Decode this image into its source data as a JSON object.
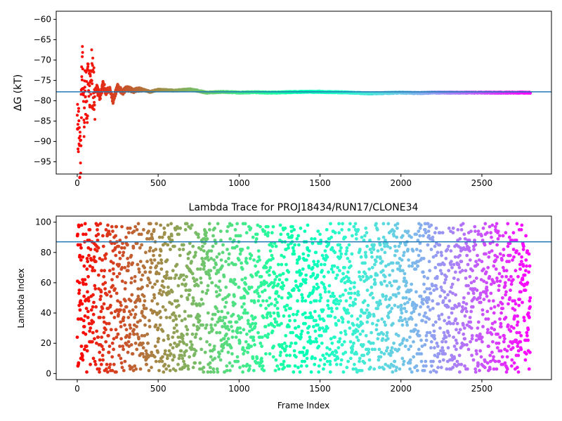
{
  "chart_data": [
    {
      "type": "scatter",
      "title": "",
      "xlabel": "",
      "ylabel": "ΔG (kT)",
      "xlim": [
        -130,
        2930
      ],
      "ylim": [
        -98,
        -58
      ],
      "xticks": [
        0,
        500,
        1000,
        1500,
        2000,
        2500
      ],
      "xtick_labels": [
        "0",
        "500",
        "1000",
        "1500",
        "2000",
        "2500"
      ],
      "yticks": [
        -60,
        -65,
        -70,
        -75,
        -80,
        -85,
        -90,
        -95
      ],
      "ytick_labels": [
        "−60",
        "−65",
        "−70",
        "−75",
        "−80",
        "−85",
        "−90",
        "−95"
      ],
      "colormap": "rainbow",
      "hline": -77.8,
      "hline_color": "#1f77b4",
      "series": [
        {
          "x": [
            0,
            10,
            20,
            30,
            40,
            50,
            60,
            70,
            80,
            90,
            100,
            120,
            140,
            160,
            180,
            200,
            220,
            250,
            280,
            300,
            350,
            400,
            450,
            500,
            600,
            700,
            800,
            900,
            1000,
            1100,
            1200,
            1300,
            1400,
            1500,
            1600,
            1700,
            1800,
            1900,
            2000,
            2100,
            2200,
            2300,
            2400,
            2500,
            2600,
            2700,
            2800
          ],
          "y": [
            -80,
            -90,
            -96,
            -68,
            -85,
            -75,
            -82,
            -72,
            -79,
            -74,
            -78,
            -77,
            -79,
            -76,
            -78,
            -77,
            -80,
            -76.5,
            -78,
            -77,
            -77.5,
            -77.2,
            -77.8,
            -77.3,
            -77.5,
            -77.2,
            -78,
            -77.8,
            -78,
            -77.9,
            -78,
            -77.9,
            -77.8,
            -77.8,
            -77.9,
            -78,
            -78.2,
            -78.1,
            -78,
            -78.1,
            -78,
            -78,
            -78,
            -78,
            -78,
            -78,
            -78
          ]
        }
      ],
      "grid": false,
      "legend": "none"
    },
    {
      "type": "scatter",
      "title": "Lambda Trace for PROJ18434/RUN17/CLONE34",
      "xlabel": "Frame Index",
      "ylabel": "Lambda Index",
      "xlim": [
        -130,
        2930
      ],
      "ylim": [
        -4,
        104
      ],
      "xticks": [
        0,
        500,
        1000,
        1500,
        2000,
        2500
      ],
      "xtick_labels": [
        "0",
        "500",
        "1000",
        "1500",
        "2000",
        "2500"
      ],
      "yticks": [
        0,
        20,
        40,
        60,
        80,
        100
      ],
      "ytick_labels": [
        "0",
        "20",
        "40",
        "60",
        "80",
        "100"
      ],
      "colormap": "rainbow",
      "hline": 87,
      "hline_color": "#1f77b4",
      "point_count": 2800,
      "value_range": [
        1,
        99
      ],
      "grid": false,
      "legend": "none"
    }
  ]
}
